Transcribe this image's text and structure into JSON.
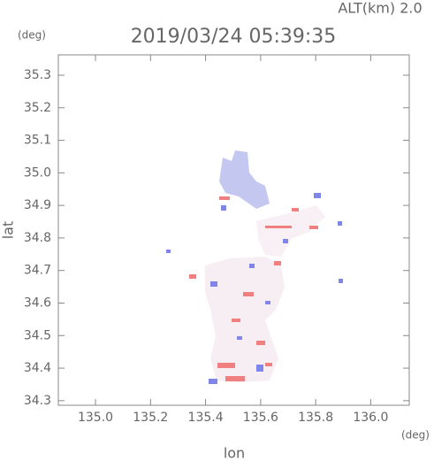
{
  "chart_data": {
    "type": "map",
    "title": "2019/03/24 05:39:35",
    "subtitle": "ALT(km) 2.0",
    "y_unit": "(deg)",
    "x_unit": "(deg)",
    "xlabel": "lon",
    "ylabel": "lat",
    "xlim": [
      134.865,
      136.14
    ],
    "ylim": [
      34.286,
      35.3625
    ],
    "xticks": [
      {
        "value": 135,
        "label": "135.0"
      },
      135.2,
      135.4,
      135.6,
      135.8,
      {
        "value": 136,
        "label": "136.0"
      }
    ],
    "yticks": [
      34.3,
      34.4,
      34.5,
      34.6,
      34.7,
      34.8,
      34.9,
      {
        "value": 35,
        "label": "35.0"
      },
      35.1,
      35.2,
      35.3
    ]
  }
}
